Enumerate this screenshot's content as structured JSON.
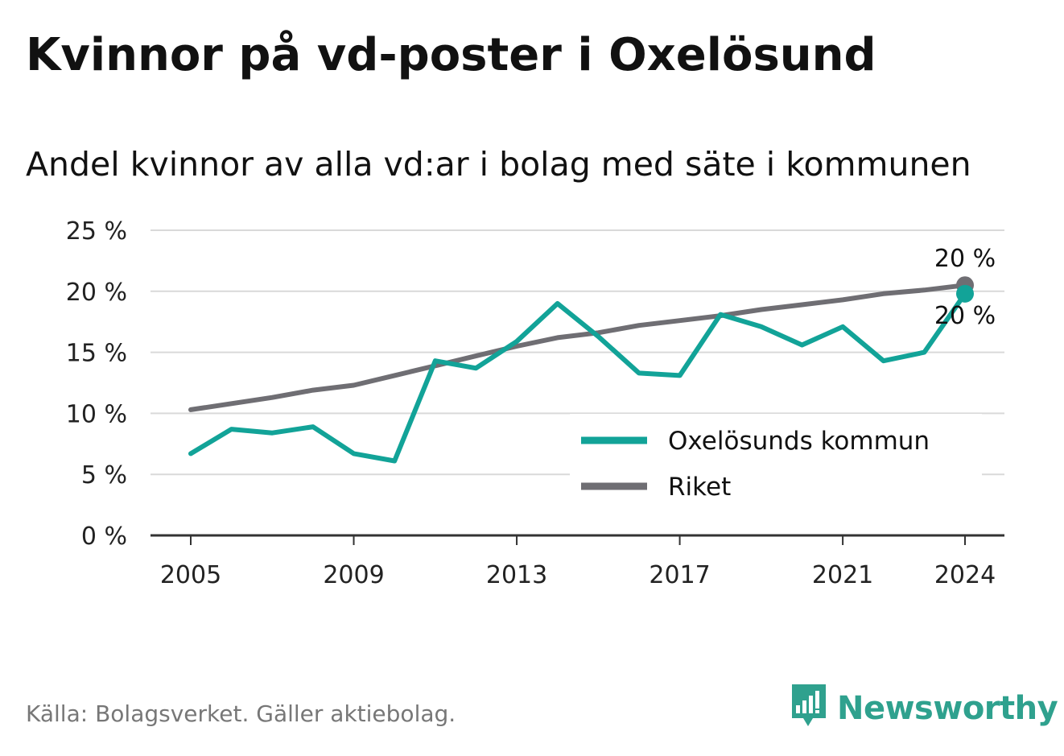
{
  "header": {
    "title": "Kvinnor på vd-poster i Oxelösund",
    "subtitle": "Andel kvinnor av alla vd:ar i bolag med säte i kommunen"
  },
  "footer": {
    "source": "Källa: Bolagsverket. Gäller aktiebolag.",
    "brand": "Newsworthy",
    "brand_icon": "bar-chart-speech-bubble-icon"
  },
  "colors": {
    "kommun": "#12a398",
    "riket": "#6f6e73",
    "grid": "#d9d9d9",
    "axis": "#333333",
    "brand": "#2fa18e"
  },
  "chart_data": {
    "type": "line",
    "title": "Kvinnor på vd-poster i Oxelösund",
    "subtitle": "Andel kvinnor av alla vd:ar i bolag med säte i kommunen",
    "xlabel": "",
    "ylabel": "",
    "x": [
      2005,
      2006,
      2007,
      2008,
      2009,
      2010,
      2011,
      2012,
      2013,
      2014,
      2015,
      2016,
      2017,
      2018,
      2019,
      2020,
      2021,
      2022,
      2023,
      2024
    ],
    "xticks": [
      2005,
      2009,
      2013,
      2017,
      2021,
      2024
    ],
    "xtick_labels": [
      "2005",
      "2009",
      "2013",
      "2017",
      "2021",
      "2024"
    ],
    "xlim": [
      2004,
      2025
    ],
    "ylim": [
      0,
      25
    ],
    "yticks": [
      0,
      5,
      10,
      15,
      20,
      25
    ],
    "ytick_labels": [
      "0 %",
      "5 %",
      "10 %",
      "15 %",
      "20 %",
      "25 %"
    ],
    "grid": true,
    "legend_position": "lower-right",
    "series": [
      {
        "name": "Oxelösunds kommun",
        "color": "#12a398",
        "values": [
          6.7,
          8.7,
          8.4,
          8.9,
          6.7,
          6.1,
          14.3,
          13.7,
          15.9,
          19.0,
          16.3,
          13.3,
          13.1,
          18.1,
          17.1,
          15.6,
          17.1,
          14.3,
          15.0,
          19.8
        ],
        "end_label": "20 %"
      },
      {
        "name": "Riket",
        "color": "#6f6e73",
        "values": [
          10.3,
          10.8,
          11.3,
          11.9,
          12.3,
          13.1,
          13.9,
          14.7,
          15.5,
          16.2,
          16.6,
          17.2,
          17.6,
          18.0,
          18.5,
          18.9,
          19.3,
          19.8,
          20.1,
          20.5
        ],
        "end_label": "20 %"
      }
    ]
  }
}
